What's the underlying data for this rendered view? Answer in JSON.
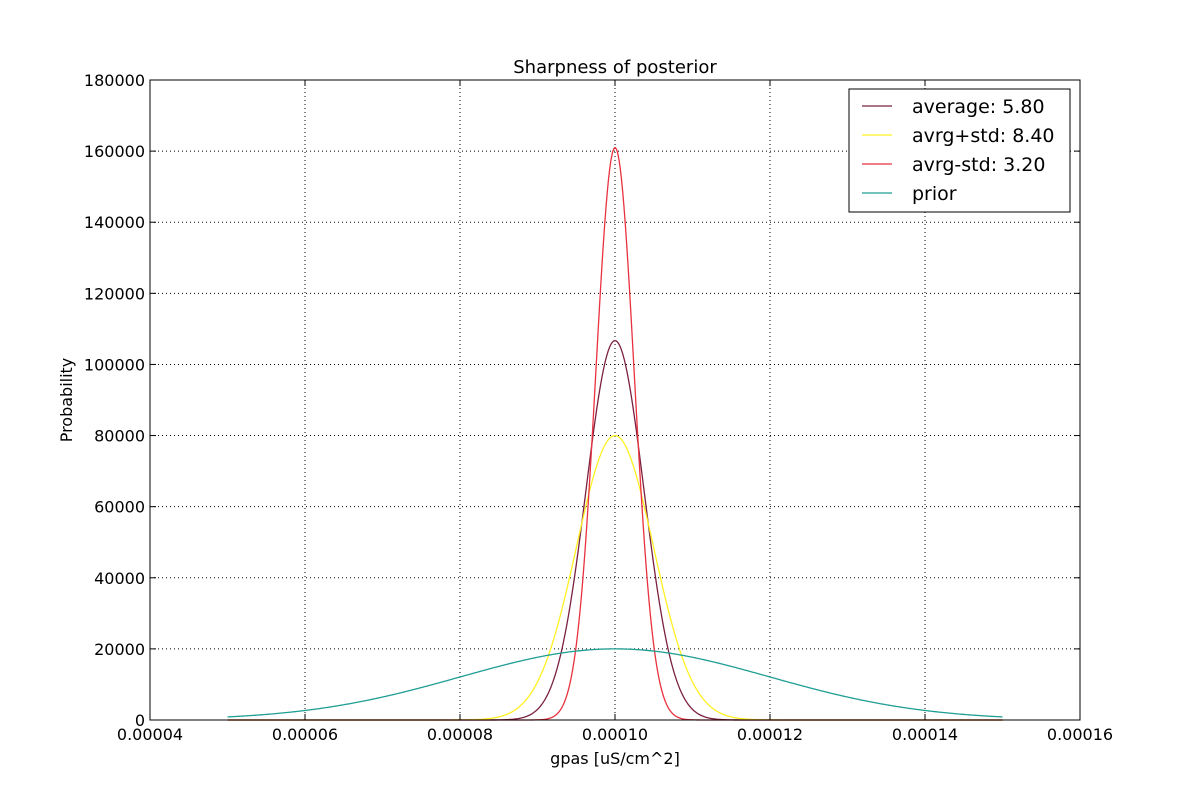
{
  "chart_data": {
    "type": "line",
    "title": "Sharpness of posterior",
    "xlabel": "gpas [uS/cm^2]",
    "ylabel": "Probability",
    "xlim": [
      4e-05,
      0.00016
    ],
    "ylim": [
      0,
      180000
    ],
    "x_ticks": [
      "0.00004",
      "0.00006",
      "0.00008",
      "0.00010",
      "0.00012",
      "0.00014",
      "0.00016"
    ],
    "y_ticks": [
      "0",
      "20000",
      "40000",
      "60000",
      "80000",
      "100000",
      "120000",
      "140000",
      "160000",
      "180000"
    ],
    "grid": true,
    "legend_position": "top-right",
    "series": [
      {
        "name": "average: 5.80",
        "color": "#7b2140",
        "distribution": "normal",
        "mean": 0.0001,
        "peak": 106700,
        "x_range": [
          5e-05,
          0.00015
        ]
      },
      {
        "name": "avrg+std: 8.40",
        "color": "#fff021",
        "distribution": "normal",
        "mean": 0.0001,
        "peak": 80000,
        "x_range": [
          5e-05,
          0.00015
        ]
      },
      {
        "name": "avrg-std: 3.20",
        "color": "#e8323f",
        "distribution": "normal",
        "mean": 0.0001,
        "peak": 161000,
        "x_range": [
          5e-05,
          0.00015
        ]
      },
      {
        "name": "prior",
        "color": "#1f9e94",
        "distribution": "normal",
        "mean": 0.0001,
        "peak": 20000,
        "x_range": [
          5e-05,
          0.00015
        ]
      }
    ]
  }
}
